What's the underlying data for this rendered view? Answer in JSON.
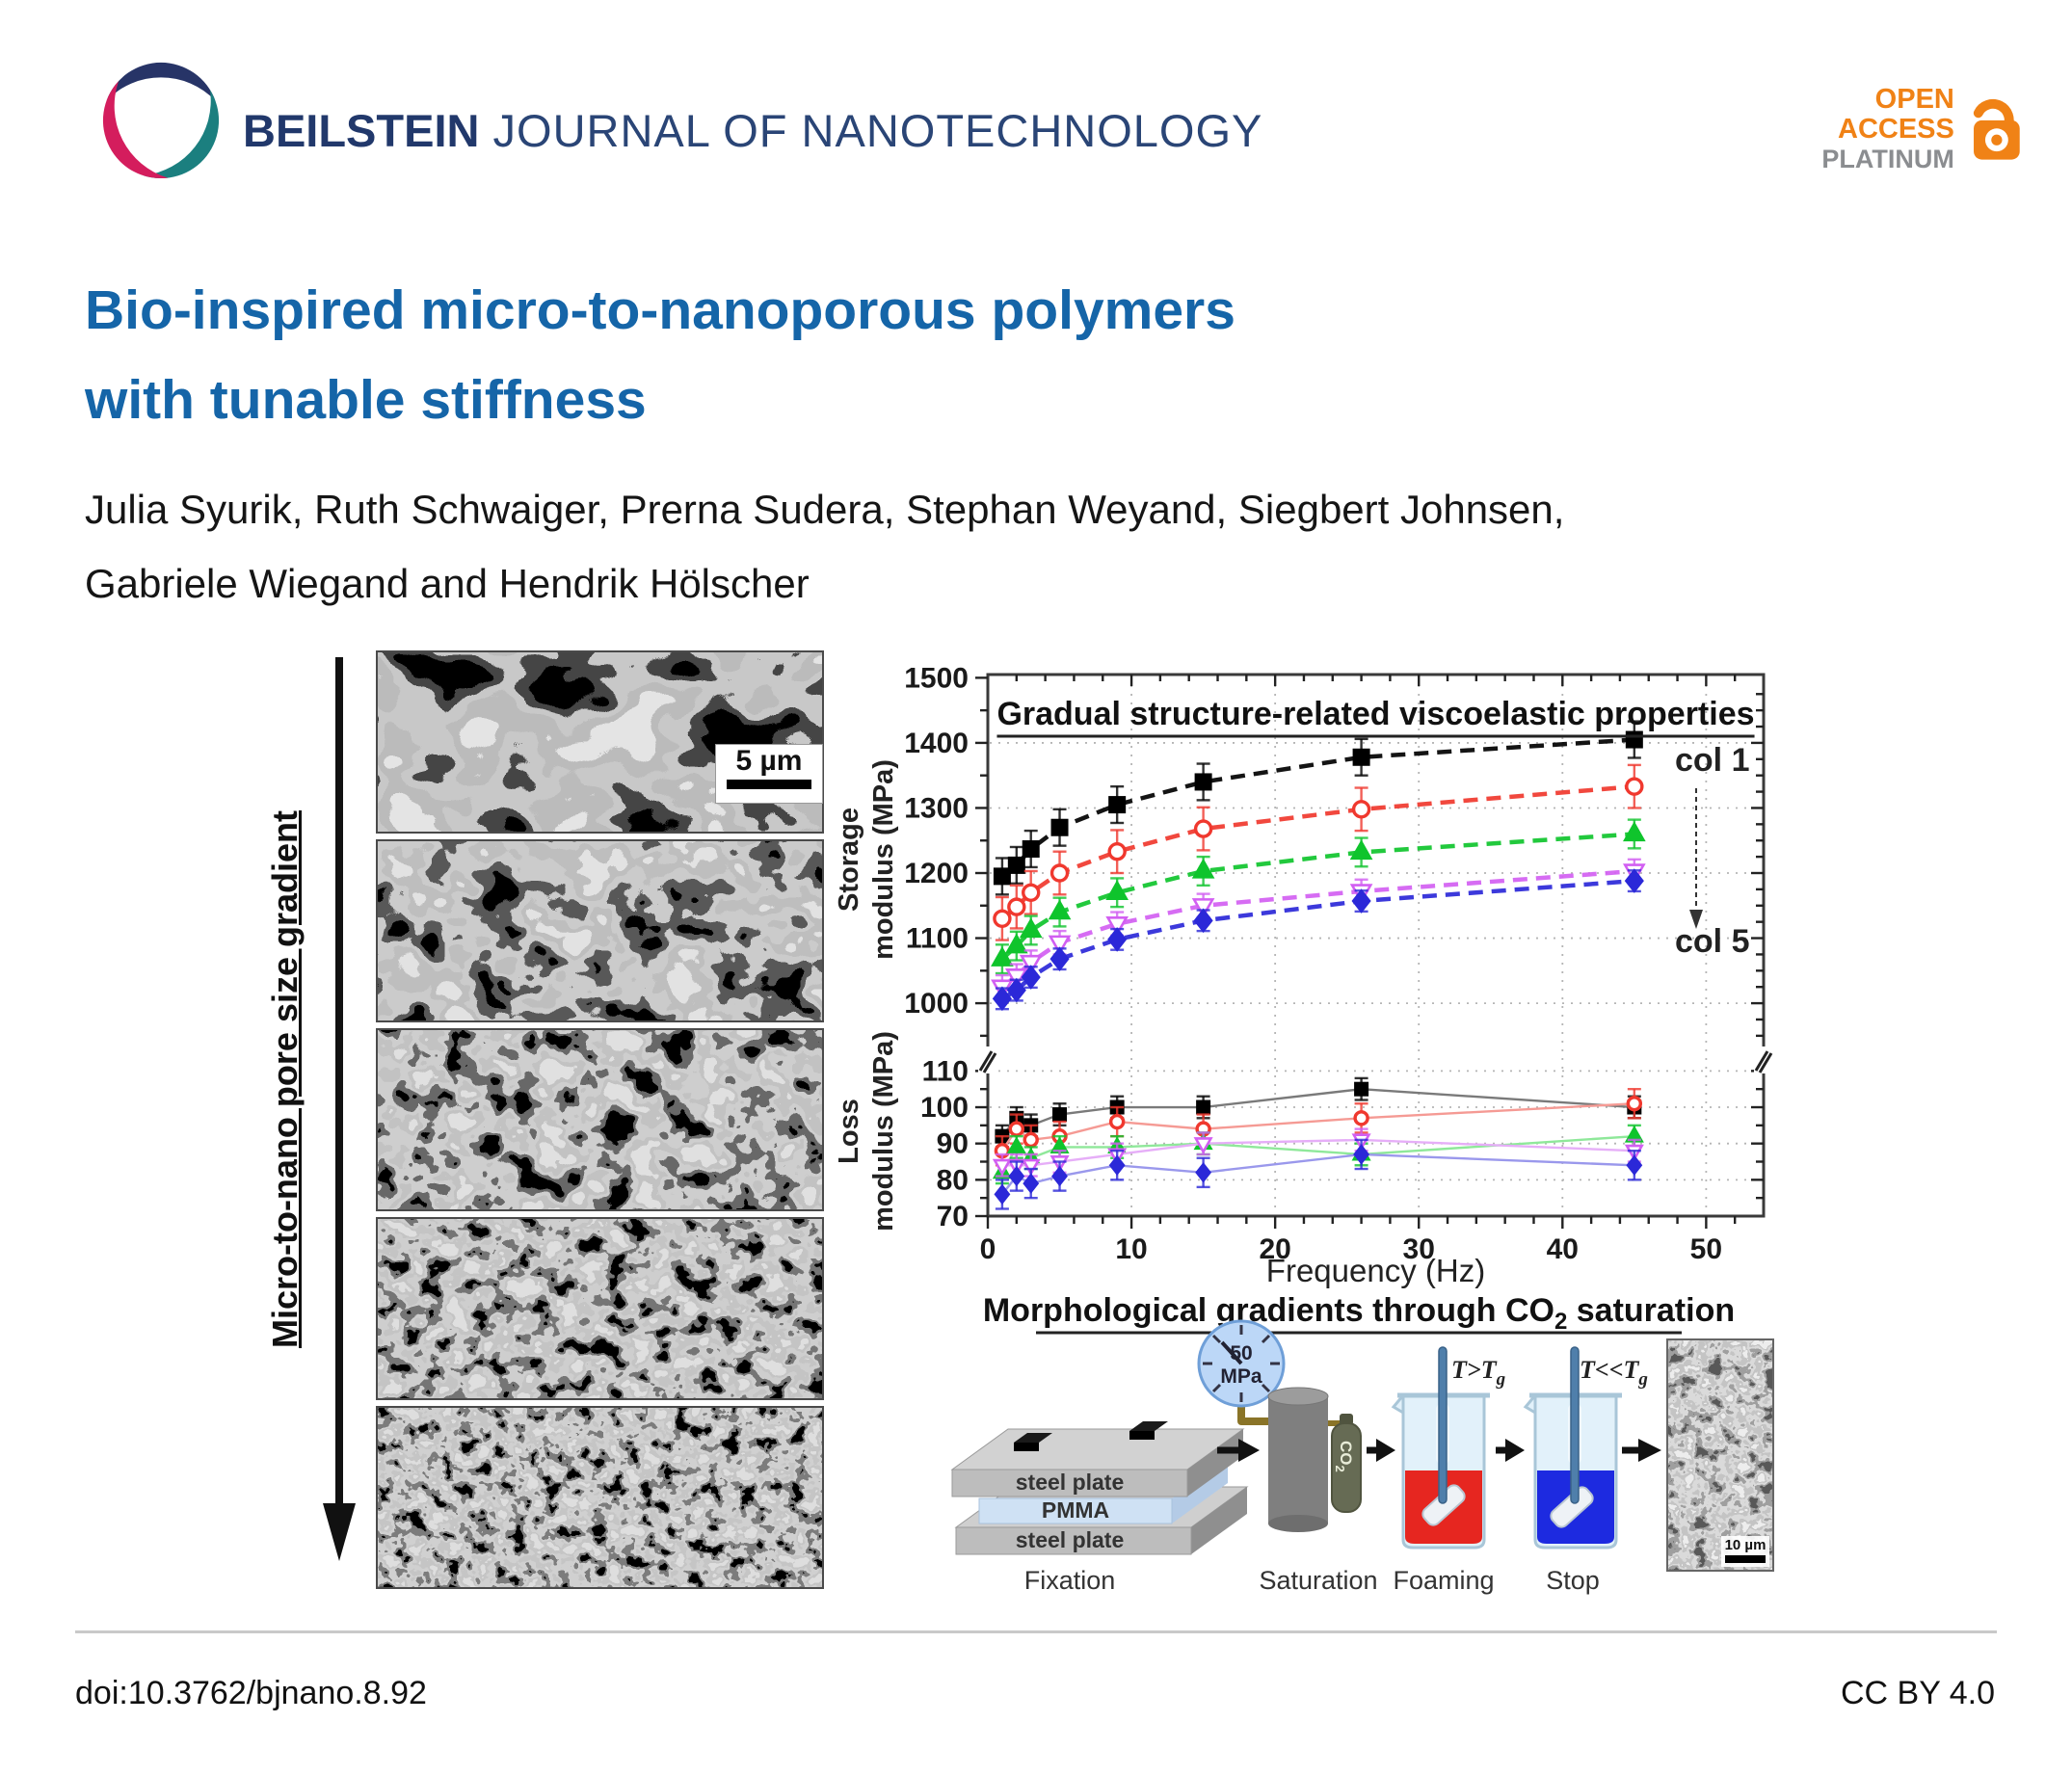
{
  "header": {
    "journal_bold": "BEILSTEIN",
    "journal_rest": " JOURNAL OF NANOTECHNOLOGY",
    "badge": {
      "line1": "OPEN",
      "line2": "ACCESS",
      "line3": "PLATINUM"
    }
  },
  "title": {
    "line1": "Bio-inspired micro-to-nanoporous polymers",
    "line2": "with tunable stiffness"
  },
  "authors": {
    "line1": "Julia Syurik, Ruth Schwaiger, Prerna Sudera, Stephan Weyand, Siegbert Johnsen,",
    "line2": "Gabriele Wiegand and Hendrik Hölscher"
  },
  "figure": {
    "gradient_label": "Micro-to-nano pore size gradient",
    "scalebar_top": "5 µm",
    "sem_panel_count": 5
  },
  "chart_data": {
    "type": "line",
    "x": [
      1,
      2,
      3,
      5,
      9,
      15,
      26,
      45
    ],
    "xlabel": "Frequency (Hz)",
    "xlim": [
      0,
      54
    ],
    "xticks": [
      0,
      10,
      20,
      30,
      40,
      50
    ],
    "legend": {
      "first": "col 1",
      "last": "col 5",
      "position": "right-inside"
    },
    "grid": "dotted",
    "panels": [
      {
        "name": "storage",
        "title": "Gradual structure-related viscoelastic properties",
        "ylabel_line1": "Storage",
        "ylabel_line2": "modulus (MPa)",
        "ylim": [
          935,
          1505
        ],
        "yticks": [
          1000,
          1100,
          1200,
          1300,
          1400,
          1500
        ],
        "line_style": "dashed",
        "series": [
          {
            "name": "col 1",
            "color": "#000000",
            "marker": "square",
            "open": false,
            "values": [
              1195,
              1212,
              1237,
              1270,
              1305,
              1340,
              1378,
              1405
            ],
            "err": 28
          },
          {
            "name": "col 2",
            "color": "#f0382e",
            "marker": "circle",
            "open": true,
            "values": [
              1130,
              1148,
              1170,
              1200,
              1233,
              1268,
              1298,
              1333
            ],
            "err": 33
          },
          {
            "name": "col 3",
            "color": "#0fc42c",
            "marker": "triangle-up",
            "open": false,
            "values": [
              1068,
              1088,
              1112,
              1140,
              1170,
              1203,
              1232,
              1260
            ],
            "err": 22
          },
          {
            "name": "col 4",
            "color": "#d25ff2",
            "marker": "triangle-down",
            "open": true,
            "values": [
              1025,
              1042,
              1063,
              1093,
              1122,
              1150,
              1172,
              1203
            ],
            "err": 18
          },
          {
            "name": "col 5",
            "color": "#2b28d8",
            "marker": "diamond",
            "open": false,
            "values": [
              1007,
              1020,
              1040,
              1068,
              1098,
              1127,
              1157,
              1188
            ],
            "err": 16
          }
        ]
      },
      {
        "name": "loss",
        "ylabel_line1": "Loss",
        "ylabel_line2": "modulus (MPa)",
        "ylim": [
          70,
          117
        ],
        "yticks": [
          70,
          80,
          90,
          100,
          110
        ],
        "line_style": "solid",
        "series": [
          {
            "name": "col 1",
            "color": "#000000",
            "line_color": "#7a7a7a",
            "marker": "square",
            "open": false,
            "values": [
              92,
              97,
              95,
              98,
              100,
              100,
              105,
              100
            ],
            "err": 3
          },
          {
            "name": "col 2",
            "color": "#f0382e",
            "line_color": "#f59a94",
            "marker": "circle",
            "open": true,
            "values": [
              88,
              94,
              91,
              92,
              96,
              94,
              97,
              101
            ],
            "err": 4
          },
          {
            "name": "col 3",
            "color": "#0fc42c",
            "line_color": "#8fe89a",
            "marker": "triangle-up",
            "open": false,
            "values": [
              82,
              89,
              86,
              89,
              89,
              90,
              87,
              92
            ],
            "err": 3
          },
          {
            "name": "col 4",
            "color": "#d25ff2",
            "line_color": "#e6aef8",
            "marker": "triangle-down",
            "open": true,
            "values": [
              84,
              84,
              84,
              85,
              87,
              90,
              91,
              88
            ],
            "err": 3
          },
          {
            "name": "col 5",
            "color": "#2b28d8",
            "line_color": "#9a98ec",
            "marker": "diamond",
            "open": false,
            "values": [
              76,
              81,
              79,
              81,
              84,
              82,
              87,
              84
            ],
            "err": 4
          }
        ]
      }
    ]
  },
  "process": {
    "title_pre": "Morphological gradients through CO",
    "title_sub": "2",
    "title_post": " saturation",
    "plates": [
      "steel plate",
      "PMMA",
      "steel plate"
    ],
    "gauge_line1": "50",
    "gauge_line2": "MPa",
    "co2_pre": "CO",
    "co2_sub": "2",
    "foaming_t": "T>T",
    "stop_t": "T<<T",
    "t_sub": "g",
    "steps": [
      "Fixation",
      "Saturation",
      "Foaming",
      "Stop"
    ],
    "scalebar": "10 µm"
  },
  "footer": {
    "doi": "doi:10.3762/bjnano.8.92",
    "license": "CC BY 4.0"
  },
  "colors": {
    "title_blue": "#1565a8",
    "journal_navy": "#21386b",
    "badge_orange": "#f08216",
    "badge_gray": "#8b8d90",
    "logo_navy": "#273467",
    "logo_teal": "#1b7f7f",
    "logo_crimson": "#d41d5d",
    "foaming_liquid": "#e62620",
    "stop_liquid": "#1d2ae0"
  }
}
